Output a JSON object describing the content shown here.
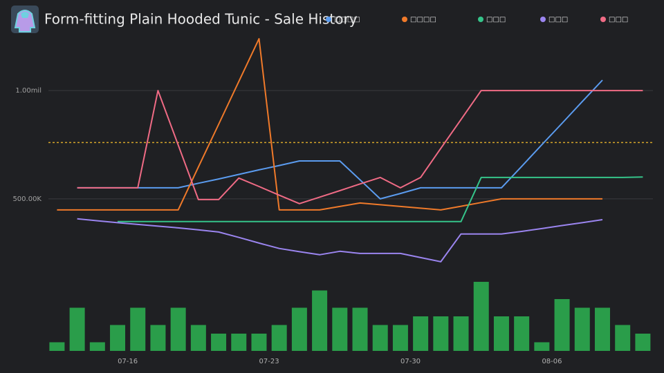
{
  "chart_data": {
    "type": "line",
    "title": "Form-fitting Plain Hooded Tunic - Sale History",
    "categories": [
      null,
      null,
      null,
      null,
      "07-16",
      null,
      null,
      null,
      null,
      null,
      null,
      "07-23",
      null,
      null,
      null,
      null,
      null,
      null,
      "07-30",
      null,
      null,
      null,
      null,
      null,
      null,
      "08-06",
      null,
      null,
      null,
      null
    ],
    "ylim": [
      200000,
      1300000
    ],
    "yticks": [
      {
        "value": 500000,
        "label": "500.00K"
      },
      {
        "value": 1000000,
        "label": "1.00mil"
      }
    ],
    "grid": true,
    "legend": "top",
    "reference_line": {
      "value": 760000,
      "color": "#d9a82a"
    },
    "series": [
      {
        "name": "□□□□",
        "color": "#5b9cf0",
        "values": [
          null,
          551000,
          551000,
          551000,
          551000,
          551000,
          551000,
          572000,
          592000,
          613000,
          634000,
          654000,
          675000,
          675000,
          675000,
          588000,
          500000,
          525000,
          551000,
          551000,
          551000,
          551000,
          551000,
          650000,
          750000,
          849000,
          949000,
          1048000,
          null,
          null
        ]
      },
      {
        "name": "□□□□",
        "color": "#f07a2a",
        "values": [
          449000,
          449000,
          449000,
          449000,
          449000,
          449000,
          449000,
          647000,
          844000,
          1042000,
          1239000,
          449000,
          449000,
          449000,
          465000,
          481000,
          473000,
          465000,
          457000,
          449000,
          466000,
          483000,
          500000,
          500000,
          500000,
          500000,
          500000,
          500000,
          null,
          null
        ]
      },
      {
        "name": "□□□",
        "color": "#35c48a",
        "values": [
          null,
          null,
          null,
          395000,
          395000,
          395000,
          395000,
          395000,
          395000,
          395000,
          395000,
          395000,
          395000,
          395000,
          395000,
          395000,
          395000,
          395000,
          395000,
          395000,
          395000,
          599000,
          599000,
          599000,
          599000,
          599000,
          599000,
          599000,
          599000,
          601000
        ]
      },
      {
        "name": "□□□",
        "color": "#9b85f0",
        "values": [
          null,
          408000,
          399000,
          390000,
          382000,
          374000,
          366000,
          357000,
          347000,
          322000,
          296000,
          271000,
          256000,
          242000,
          258000,
          248000,
          248000,
          248000,
          229000,
          210000,
          338000,
          338000,
          338000,
          350000,
          363000,
          377000,
          390000,
          404000,
          null,
          null
        ]
      },
      {
        "name": "□□□",
        "color": "#f06b85",
        "values": [
          null,
          551000,
          551000,
          551000,
          551000,
          1000000,
          749000,
          497000,
          497000,
          596000,
          557000,
          517000,
          478000,
          508000,
          538000,
          569000,
          599000,
          551000,
          599000,
          733000,
          866000,
          1000000,
          1000000,
          1000000,
          1000000,
          1000000,
          1000000,
          1000000,
          1000000,
          1000000
        ]
      }
    ],
    "volume": {
      "color": "#2a9d4a",
      "ylim": [
        0,
        8
      ],
      "values": [
        1,
        5,
        1,
        3,
        5,
        3,
        5,
        3,
        2,
        2,
        2,
        3,
        5,
        7,
        5,
        5,
        3,
        3,
        4,
        4,
        4,
        8,
        4,
        4,
        1,
        6,
        5,
        5,
        3,
        2
      ]
    }
  }
}
